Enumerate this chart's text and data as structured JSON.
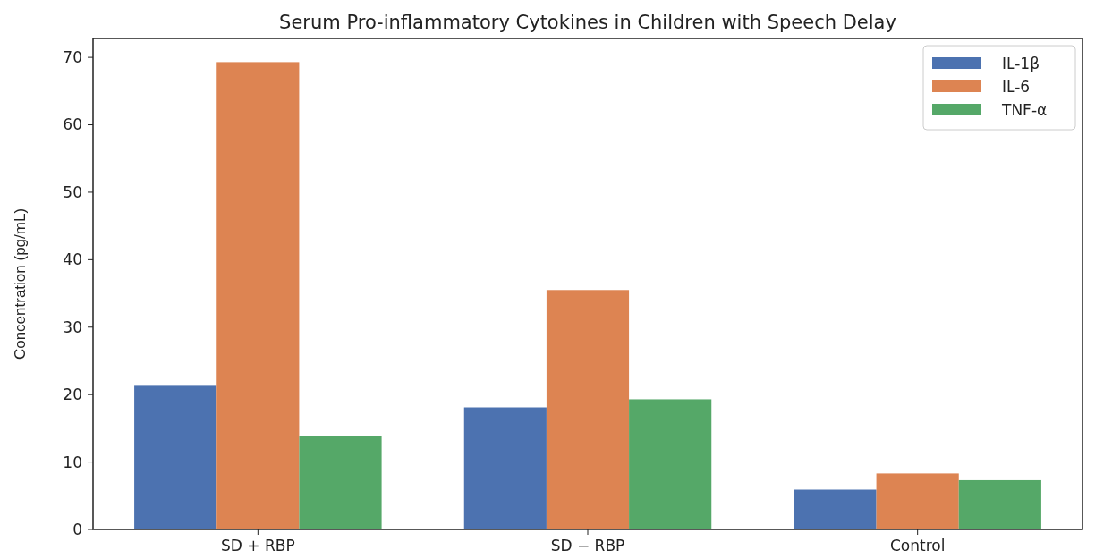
{
  "chart_data": {
    "type": "bar",
    "title": "Serum Pro-inflammatory Cytokines in Children with Speech Delay",
    "ylabel": "Concentration (pg/mL)",
    "categories": [
      "SD + RBP",
      "SD − RBP",
      "Control"
    ],
    "series": [
      {
        "name": "IL-1β",
        "color": "#4c72b0",
        "values": [
          21.3,
          18.1,
          5.9
        ]
      },
      {
        "name": "IL-6",
        "color": "#dd8452",
        "values": [
          69.3,
          35.5,
          8.3
        ]
      },
      {
        "name": "TNF-α",
        "color": "#55a868",
        "values": [
          13.8,
          19.3,
          7.3
        ]
      }
    ],
    "ylim": [
      0,
      72.8
    ],
    "yticks": [
      0,
      10,
      20,
      30,
      40,
      50,
      60,
      70
    ],
    "legend": "top right"
  }
}
